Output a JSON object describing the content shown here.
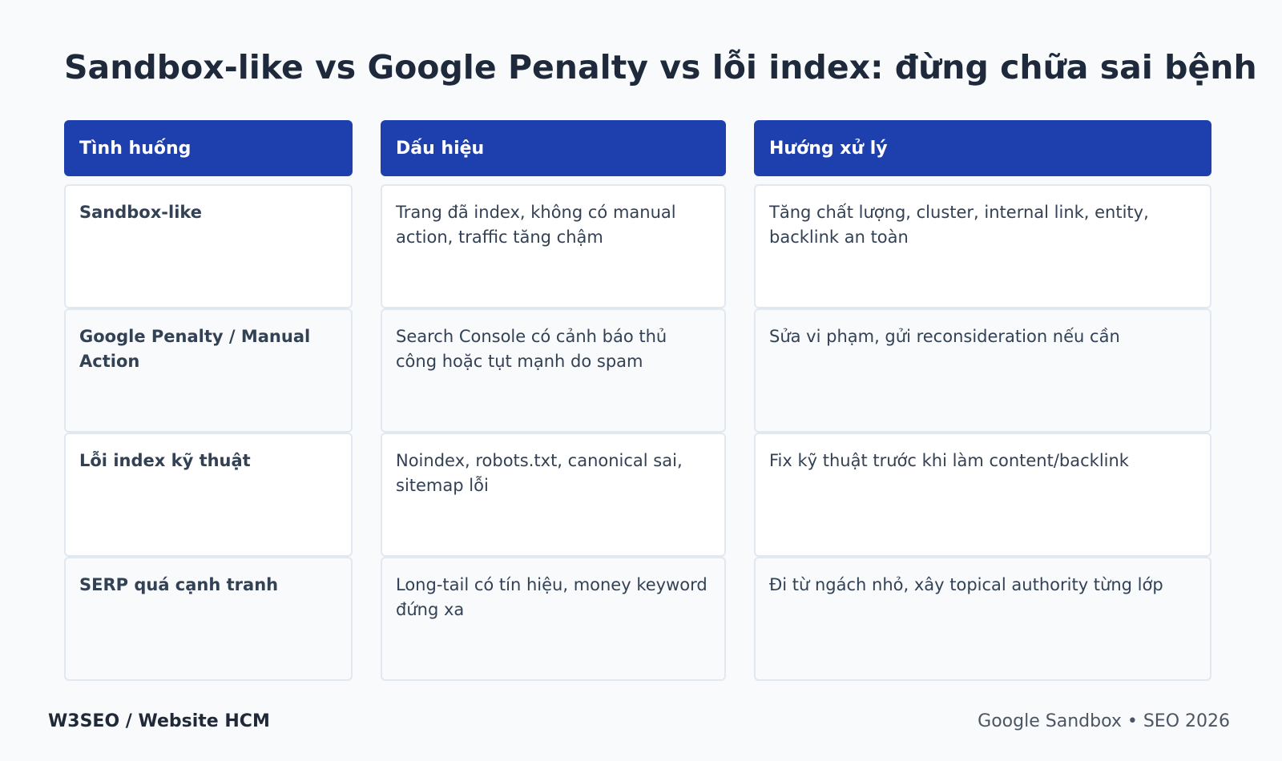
{
  "title": "Sandbox-like vs Google Penalty vs lỗi index: đừng chữa sai bệnh",
  "table": {
    "headers": [
      "Tình huống",
      "Dấu hiệu",
      "Hướng xử lý"
    ],
    "rows": [
      {
        "situation": "Sandbox-like",
        "signs": "Trang đã index, không có manual action, traffic tăng chậm",
        "action": "Tăng chất lượng, cluster, internal link, entity, backlink an toàn"
      },
      {
        "situation": "Google Penalty / Manual Action",
        "signs": "Search Console có cảnh báo thủ công hoặc tụt mạnh do spam",
        "action": "Sửa vi phạm, gửi reconsideration nếu cần"
      },
      {
        "situation": "Lỗi index kỹ thuật",
        "signs": "Noindex, robots.txt, canonical sai, sitemap lỗi",
        "action": "Fix kỹ thuật trước khi làm content/backlink"
      },
      {
        "situation": "SERP quá cạnh tranh",
        "signs": "Long-tail có tín hiệu, money keyword đứng xa",
        "action": "Đi từ ngách nhỏ, xây topical authority từng lớp"
      }
    ]
  },
  "footer": {
    "left": "W3SEO / Website HCM",
    "right": "Google Sandbox • SEO 2026"
  },
  "colors": {
    "header_bg": "#1e40af",
    "page_bg": "#f8fafc",
    "cell_border": "#e2e8f0"
  }
}
